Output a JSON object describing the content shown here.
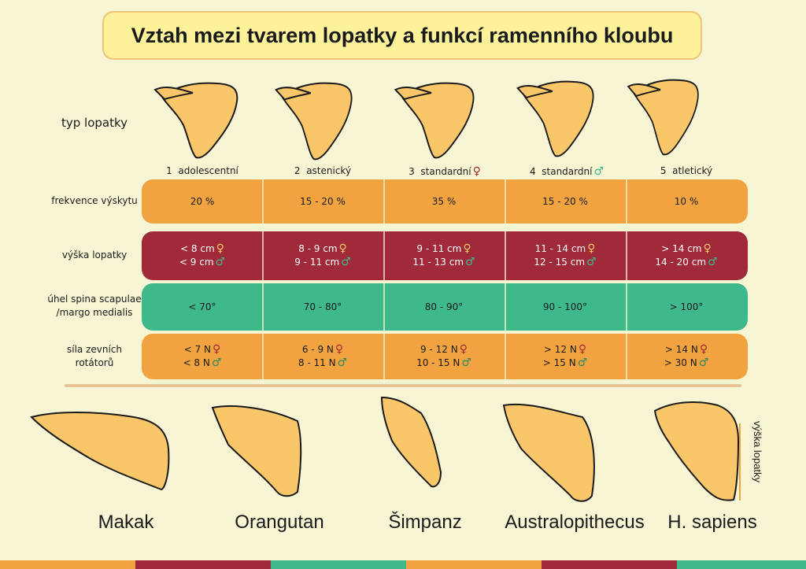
{
  "title": "Vztah mezi tvarem lopatky a funkcí ramenního kloubu",
  "type_label": "typ lopatky",
  "columns": [
    {
      "num": "1",
      "name": "adolescentní",
      "sex": ""
    },
    {
      "num": "2",
      "name": "astenický",
      "sex": ""
    },
    {
      "num": "3",
      "name": "standardní",
      "sex": "♀"
    },
    {
      "num": "4",
      "name": "standardní",
      "sex": "♂"
    },
    {
      "num": "5",
      "name": "atletický",
      "sex": ""
    }
  ],
  "rows": [
    {
      "label": "frekvence výskytu",
      "values": [
        "20 %",
        "15 - 20 %",
        "35 %",
        "15 - 20 %",
        "10 %"
      ]
    },
    {
      "label": "výška lopatky",
      "values_f": [
        "< 8 cm",
        "8 - 9 cm",
        "9 - 11 cm",
        "11 - 14 cm",
        "> 14 cm"
      ],
      "values_m": [
        "< 9 cm",
        "9 - 11 cm",
        "11 - 13 cm",
        "12 - 15 cm",
        "14 - 20 cm"
      ]
    },
    {
      "label_1": "úhel spina scapulae",
      "label_2": "/margo medialis",
      "values": [
        "< 70°",
        "70 - 80°",
        "80 - 90°",
        "90 - 100°",
        "> 100°"
      ]
    },
    {
      "label_1": "síla zevních",
      "label_2": "rotátorů",
      "values_f": [
        "< 7 N",
        "6 - 9 N",
        "9 - 12 N",
        "> 12 N",
        "> 14 N"
      ],
      "values_m": [
        "< 8 N",
        "8 - 11 N",
        "10 - 15 N",
        "> 15 N",
        "> 30 N"
      ]
    }
  ],
  "female_symbol": "♀",
  "male_symbol": "♂",
  "species": [
    "Makak",
    "Orangutan",
    "Šimpanz",
    "Australopithecus",
    "H. sapiens"
  ],
  "height_label": "výška lopatky",
  "colors": {
    "orange": "#f0a33f",
    "maroon": "#a12a3a",
    "green": "#3db98b",
    "bone": "#f9c76a",
    "title_bg": "#fbf29a",
    "background": "#f8f5d4"
  }
}
